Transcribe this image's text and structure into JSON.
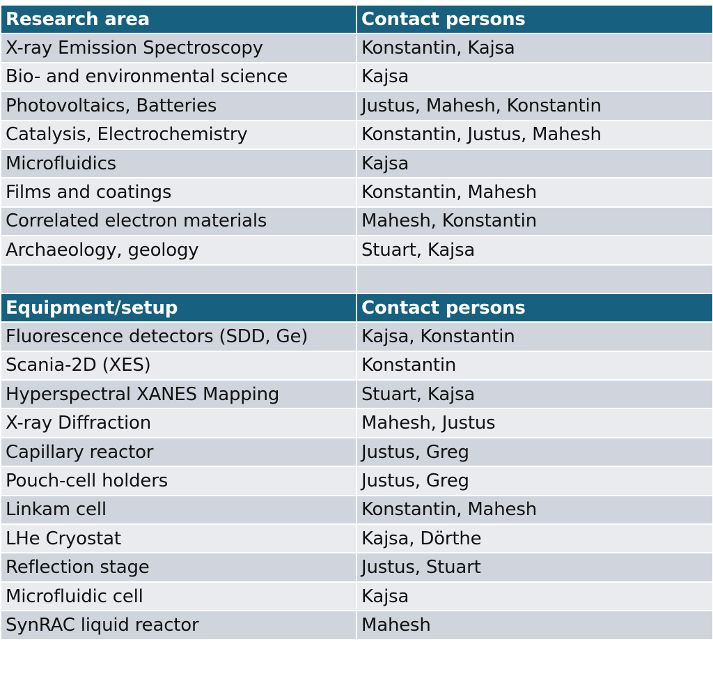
{
  "research": {
    "header": [
      "Research area",
      "Contact persons"
    ],
    "rows": [
      [
        "X-ray Emission Spectroscopy",
        "Konstantin, Kajsa"
      ],
      [
        "Bio- and environmental science",
        "Kajsa"
      ],
      [
        "Photovoltaics, Batteries",
        "Justus, Mahesh, Konstantin"
      ],
      [
        "Catalysis, Electrochemistry",
        "Konstantin, Justus, Mahesh"
      ],
      [
        "Microfluidics",
        "Kajsa"
      ],
      [
        "Films and coatings",
        "Konstantin, Mahesh"
      ],
      [
        "Correlated electron materials",
        "Mahesh, Konstantin"
      ],
      [
        "Archaeology, geology",
        "Stuart, Kajsa"
      ]
    ]
  },
  "equipment": {
    "header": [
      "Equipment/setup",
      "Contact persons"
    ],
    "rows": [
      [
        "Fluorescence detectors (SDD, Ge)",
        "Kajsa, Konstantin"
      ],
      [
        "Scania-2D (XES)",
        "Konstantin"
      ],
      [
        "Hyperspectral XANES Mapping",
        "Stuart, Kajsa"
      ],
      [
        "X-ray Diffraction",
        "Mahesh, Justus"
      ],
      [
        "Capillary reactor",
        "Justus, Greg"
      ],
      [
        "Pouch-cell holders",
        "Justus, Greg"
      ],
      [
        "Linkam cell",
        "Konstantin, Mahesh"
      ],
      [
        "LHe Cryostat",
        "Kajsa, Dörthe"
      ],
      [
        "Reflection stage",
        "Justus, Stuart"
      ],
      [
        "Microfluidic cell",
        "Kajsa"
      ],
      [
        "SynRAC liquid reactor",
        "Mahesh"
      ]
    ]
  },
  "colors": {
    "header_bg": "#176080",
    "row_shade": "#d0d4dc",
    "row_light": "#e9ebef"
  }
}
